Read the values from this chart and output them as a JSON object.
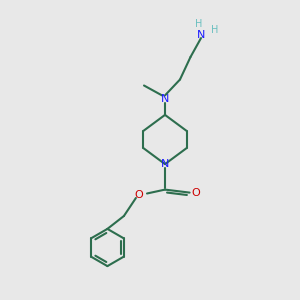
{
  "bg_color": "#e8e8e8",
  "bond_color": "#2d6e4e",
  "N_color": "#1a1aff",
  "O_color": "#cc0000",
  "H_color": "#6abfbf",
  "line_width": 1.5,
  "fig_size": [
    3.0,
    3.0
  ],
  "dpi": 100,
  "xlim": [
    0,
    10
  ],
  "ylim": [
    0,
    10
  ]
}
